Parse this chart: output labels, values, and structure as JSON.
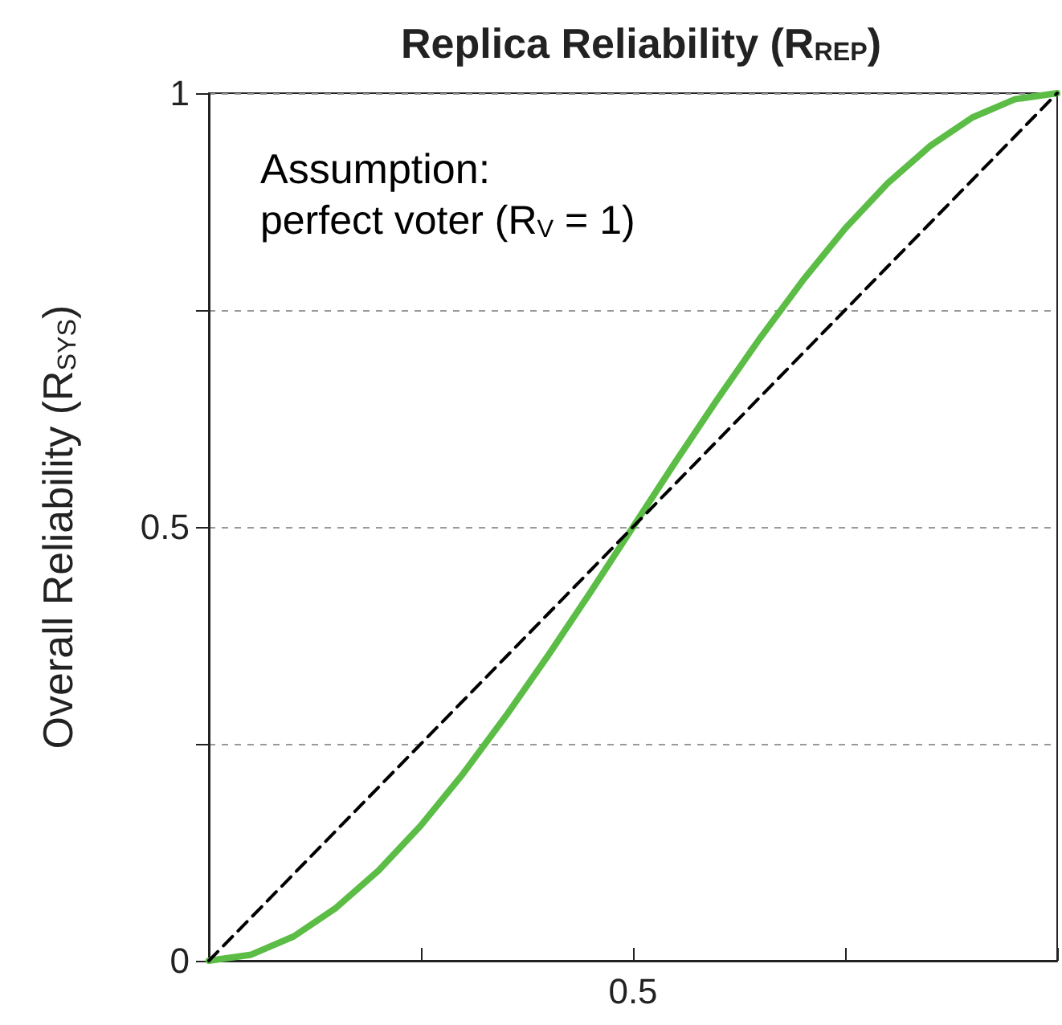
{
  "chart_data": {
    "type": "line",
    "xlabel": "Replica Reliability (R$_{REP}$)",
    "ylabel": "Overall Reliability (R$_{SYS}$)",
    "annotations": [
      "Assumption:",
      "perfect voter (R$_{V}$ = 1)"
    ],
    "categories": [
      null,
      null,
      null,
      null,
      null,
      null,
      null,
      null,
      null,
      null,
      "0.5",
      null,
      null,
      null,
      null,
      null,
      null,
      null,
      null,
      null,
      null
    ],
    "series": [
      {
        "color": "#5bbd45",
        "line_style": "solid",
        "values": [
          0,
          0.007,
          0.028,
          0.061,
          0.104,
          0.156,
          0.216,
          0.282,
          0.352,
          0.425,
          0.5,
          0.575,
          0.648,
          0.718,
          0.784,
          0.844,
          0.896,
          0.939,
          0.972,
          0.993,
          1
        ]
      },
      {
        "color": "#000000",
        "line_style": "dashed",
        "values": [
          0,
          0.05,
          0.1,
          0.15,
          0.2,
          0.25,
          0.3,
          0.35,
          0.4,
          0.45,
          0.5,
          0.55,
          0.6,
          0.65,
          0.7,
          0.75,
          0.8,
          0.85,
          0.9,
          0.95,
          1
        ]
      }
    ],
    "ylim": [
      0,
      1
    ],
    "yticks": [
      0,
      {
        "value": 0.25,
        "label": null
      },
      0.5,
      {
        "value": 0.75,
        "label": null
      },
      1
    ],
    "grid": "y",
    "marker": "none"
  }
}
